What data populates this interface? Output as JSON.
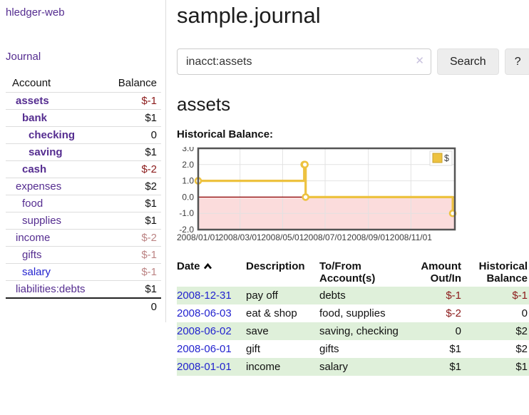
{
  "colors": {
    "link_purple": "#552D90",
    "link_blue": "#2323CF",
    "negative_strong": "#8B1A1A",
    "negative_soft": "#BC8484",
    "row_stripe_green": "#DFF0DA",
    "chart_line_gold": "#EDC240"
  },
  "sidebar": {
    "app_title": "hledger-web",
    "journal_label": "Journal",
    "accounts": {
      "header": {
        "account": "Account",
        "balance": "Balance"
      },
      "rows": [
        {
          "name": "assets",
          "level": 1,
          "bold": true,
          "balance": "$-1",
          "neg": "strong"
        },
        {
          "name": "bank",
          "level": 2,
          "bold": true,
          "balance": "$1"
        },
        {
          "name": "checking",
          "level": 3,
          "bold": true,
          "balance": "0"
        },
        {
          "name": "saving",
          "level": 3,
          "bold": true,
          "balance": "$1"
        },
        {
          "name": "cash",
          "level": 2,
          "bold": true,
          "balance": "$-2",
          "neg": "strong"
        },
        {
          "name": "expenses",
          "level": 1,
          "bold": false,
          "balance": "$2"
        },
        {
          "name": "food",
          "level": 2,
          "bold": false,
          "balance": "$1"
        },
        {
          "name": "supplies",
          "level": 2,
          "bold": false,
          "balance": "$1"
        },
        {
          "name": "income",
          "level": 1,
          "bold": false,
          "balance": "$-2",
          "neg": "soft"
        },
        {
          "name": "gifts",
          "level": 2,
          "bold": false,
          "balance": "$-1",
          "neg": "soft"
        },
        {
          "name": "salary",
          "level": 2,
          "bold": false,
          "balance": "$-1",
          "neg": "soft",
          "link": "blue"
        },
        {
          "name": "liabilities:debts",
          "level": 1,
          "bold": false,
          "balance": "$1"
        }
      ],
      "total": "0"
    }
  },
  "header": {
    "title": "sample.journal"
  },
  "search": {
    "value": "inacct:assets",
    "clear_icon": "✕",
    "button_label": "Search",
    "help_label": "?"
  },
  "account_page": {
    "heading": "assets",
    "chart_title": "Historical Balance:"
  },
  "chart_data": {
    "type": "line",
    "style": "step",
    "title": "Historical Balance:",
    "series_label": "$",
    "line_color": "#EDC240",
    "marker": "open-circle",
    "points": [
      {
        "date": "2008-01-01",
        "day": 0,
        "value": 1
      },
      {
        "date": "2008-06-01",
        "day": 152,
        "value": 2
      },
      {
        "date": "2008-06-02",
        "day": 153,
        "value": 2
      },
      {
        "date": "2008-06-03",
        "day": 154,
        "value": 0
      },
      {
        "date": "2008-12-31",
        "day": 365,
        "value": -1
      }
    ],
    "ylim": [
      -2,
      3
    ],
    "yticks": [
      3,
      2,
      1,
      0,
      -1,
      -2
    ],
    "xlim_days": [
      0,
      368
    ],
    "xticks": [
      {
        "label": "2008/01/01",
        "day": 0
      },
      {
        "label": "2008/03/01",
        "day": 60
      },
      {
        "label": "2008/05/01",
        "day": 121
      },
      {
        "label": "2008/07/01",
        "day": 182
      },
      {
        "label": "2008/09/01",
        "day": 244
      },
      {
        "label": "2008/11/01",
        "day": 305
      }
    ],
    "grid": true,
    "legend_position": "top-right",
    "negative_region_color": "#FBDCDC",
    "zero_line_color": "#8B0000"
  },
  "register": {
    "columns": [
      {
        "label": "Date",
        "sorted": "asc",
        "align": "left"
      },
      {
        "label": "Description",
        "align": "left"
      },
      {
        "label": "To/From Account(s)",
        "align": "left"
      },
      {
        "label": "Amount Out/In",
        "align": "right"
      },
      {
        "label": "Historical Balance",
        "align": "right"
      }
    ],
    "rows": [
      {
        "date": "2008-12-31",
        "description": "pay off",
        "accounts": "debts",
        "amount": "$-1",
        "amount_neg": true,
        "balance": "$-1",
        "balance_neg": true
      },
      {
        "date": "2008-06-03",
        "description": "eat & shop",
        "accounts": "food, supplies",
        "amount": "$-2",
        "amount_neg": true,
        "balance": "0",
        "balance_neg": false
      },
      {
        "date": "2008-06-02",
        "description": "save",
        "accounts": "saving, checking",
        "amount": "0",
        "amount_neg": false,
        "balance": "$2",
        "balance_neg": false
      },
      {
        "date": "2008-06-01",
        "description": "gift",
        "accounts": "gifts",
        "amount": "$1",
        "amount_neg": false,
        "balance": "$2",
        "balance_neg": false
      },
      {
        "date": "2008-01-01",
        "description": "income",
        "accounts": "salary",
        "amount": "$1",
        "amount_neg": false,
        "balance": "$1",
        "balance_neg": false
      }
    ]
  }
}
